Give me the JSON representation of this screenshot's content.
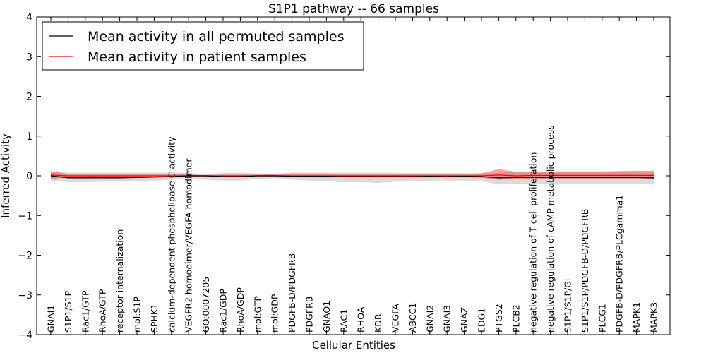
{
  "chart_data": {
    "type": "line",
    "title": "S1P1 pathway -- 66 samples",
    "xlabel": "Cellular Entities",
    "ylabel": "Inferred Activity",
    "ylim": [
      -4,
      4
    ],
    "yticks": [
      4,
      3,
      2,
      1,
      0,
      -1,
      -2,
      -3,
      -4
    ],
    "ytick_labels": [
      "4",
      "3",
      "2",
      "1",
      "0",
      "−1",
      "−2",
      "−3",
      "−4"
    ],
    "categories": [
      "GNAI1",
      "S1P1/S1P",
      "Rac1/GTP",
      "RhoA/GTP",
      "receptor internalization",
      "mol:S1P",
      "SPHK1",
      "calcium-dependent phospholipase C activity",
      "VEGFR2 homodimer/VEGFA homodimer",
      "GO:0007205",
      "Rac1/GDP",
      "RhoA/GDP",
      "mol:GTP",
      "mol:GDP",
      "PDGFB-D/PDGFRB",
      "PDGFRB",
      "GNAO1",
      "RAC1",
      "RHOA",
      "KDR",
      "VEGFA",
      "ABCC1",
      "GNAI2",
      "GNAI3",
      "GNAZ",
      "EDG1",
      "PTGS2",
      "PLCB2",
      "negative regulation of T cell proliferation",
      "negative regulation of cAMP metabolic process",
      "S1P1/S1P/Gi",
      "S1P1/S1P/PDGFB-D/PDGFRB",
      "PLCG1",
      "PDGFB-D/PDGFRB/PLCgamma1",
      "MAPK1",
      "MAPK3"
    ],
    "legend_position": "top-left",
    "series": [
      {
        "name": "Mean activity in all permuted samples",
        "color": "#000000",
        "values": [
          0.0,
          -0.05,
          -0.05,
          -0.05,
          -0.05,
          -0.04,
          -0.03,
          -0.02,
          0.0,
          0.0,
          -0.02,
          -0.02,
          0.0,
          0.0,
          -0.01,
          -0.01,
          -0.01,
          -0.02,
          -0.02,
          -0.02,
          -0.02,
          -0.02,
          -0.01,
          -0.02,
          -0.01,
          -0.02,
          -0.05,
          -0.04,
          -0.04,
          -0.04,
          -0.04,
          -0.04,
          -0.04,
          -0.04,
          -0.04,
          -0.05
        ],
        "band_upper": [
          0.1,
          0.08,
          0.08,
          0.08,
          0.08,
          0.08,
          0.08,
          0.08,
          0.08,
          0.03,
          0.08,
          0.08,
          0.06,
          0.05,
          0.08,
          0.08,
          0.08,
          0.08,
          0.08,
          0.08,
          0.08,
          0.07,
          0.07,
          0.07,
          0.07,
          0.07,
          0.08,
          0.1,
          0.1,
          0.1,
          0.1,
          0.1,
          0.1,
          0.1,
          0.1,
          0.1
        ],
        "band_lower": [
          -0.12,
          -0.16,
          -0.16,
          -0.15,
          -0.15,
          -0.14,
          -0.12,
          -0.1,
          -0.05,
          -0.1,
          -0.12,
          -0.12,
          -0.08,
          -0.06,
          -0.1,
          -0.12,
          -0.14,
          -0.16,
          -0.16,
          -0.18,
          -0.15,
          -0.14,
          -0.12,
          -0.12,
          -0.12,
          -0.14,
          -0.22,
          -0.2,
          -0.2,
          -0.2,
          -0.2,
          -0.2,
          -0.2,
          -0.2,
          -0.2,
          -0.22
        ]
      },
      {
        "name": "Mean activity in patient samples",
        "color": "#ff0000",
        "values": [
          0.02,
          0.0,
          0.0,
          0.0,
          0.0,
          0.0,
          0.0,
          0.0,
          0.0,
          0.0,
          0.0,
          0.0,
          0.0,
          0.0,
          0.0,
          0.0,
          0.0,
          0.0,
          0.0,
          0.0,
          0.0,
          0.0,
          0.0,
          0.0,
          0.0,
          0.0,
          0.02,
          0.0,
          0.01,
          0.01,
          0.01,
          0.01,
          0.01,
          0.01,
          0.01,
          0.01
        ],
        "band_upper": [
          0.12,
          0.05,
          0.04,
          0.04,
          0.04,
          0.04,
          0.04,
          0.05,
          0.03,
          0.02,
          0.03,
          0.03,
          0.03,
          0.04,
          0.06,
          0.06,
          0.06,
          0.04,
          0.04,
          0.04,
          0.04,
          0.04,
          0.04,
          0.04,
          0.04,
          0.06,
          0.17,
          0.1,
          0.11,
          0.11,
          0.11,
          0.11,
          0.11,
          0.12,
          0.13,
          0.13
        ],
        "band_lower": [
          -0.08,
          -0.04,
          -0.04,
          -0.04,
          -0.04,
          -0.04,
          -0.04,
          -0.03,
          -0.02,
          -0.02,
          -0.03,
          -0.03,
          -0.02,
          -0.03,
          -0.04,
          -0.04,
          -0.04,
          -0.04,
          -0.04,
          -0.04,
          -0.04,
          -0.04,
          -0.04,
          -0.04,
          -0.04,
          -0.05,
          -0.1,
          -0.07,
          -0.08,
          -0.08,
          -0.08,
          -0.08,
          -0.08,
          -0.08,
          -0.08,
          -0.08
        ]
      }
    ]
  }
}
